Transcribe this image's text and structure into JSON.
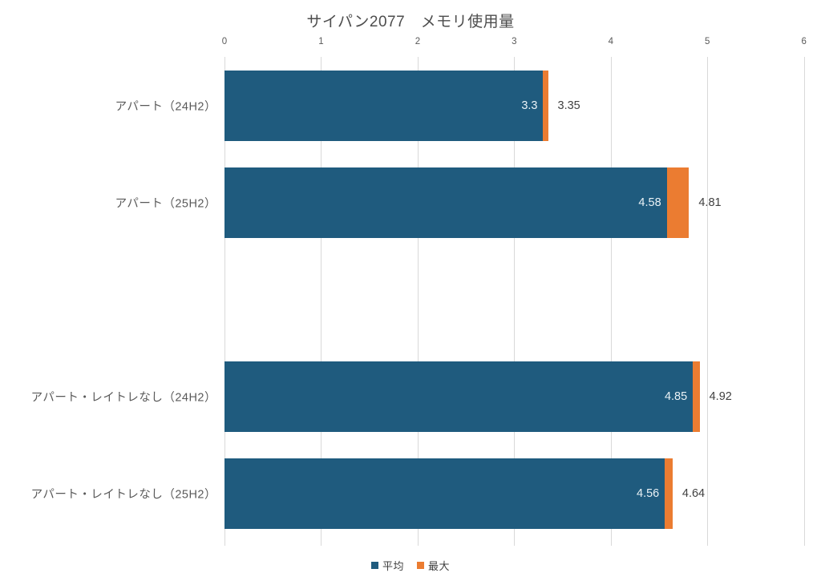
{
  "chart_data": {
    "type": "bar",
    "orientation": "horizontal",
    "title": "サイパン2077　メモリ使用量",
    "categories": [
      "アパート（24H2）",
      "アパート（25H2）",
      "",
      "アパート・レイトレなし（24H2）",
      "アパート・レイトレなし（25H2）"
    ],
    "series": [
      {
        "name": "平均",
        "color": "#1f5b7e",
        "values": [
          3.3,
          4.58,
          null,
          4.85,
          4.56
        ]
      },
      {
        "name": "最大",
        "color": "#eb7c31",
        "values": [
          3.35,
          4.81,
          null,
          4.92,
          4.64
        ]
      }
    ],
    "value_labels": {
      "inside": [
        "3.3",
        "4.58",
        null,
        "4.85",
        "4.56"
      ],
      "outside": [
        "3.35",
        "4.81",
        null,
        "4.92",
        "4.64"
      ]
    },
    "xlabel": "",
    "ylabel": "",
    "xlim": [
      0,
      6
    ],
    "ticks": [
      0,
      1,
      2,
      3,
      4,
      5,
      6
    ],
    "grid": true,
    "gridline_color": "#d9d9d9",
    "axis_text_color": "#595959",
    "legend_position": "bottom"
  }
}
